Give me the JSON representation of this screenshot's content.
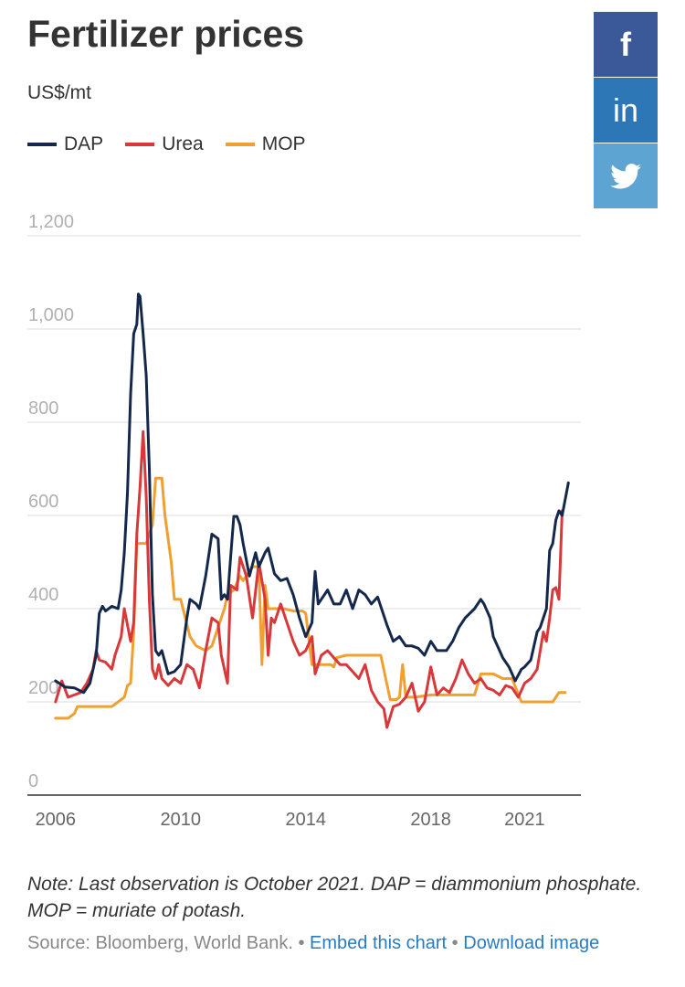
{
  "header": {
    "title": "Fertilizer prices",
    "unit": "US$/mt"
  },
  "share": {
    "facebook_label": "f",
    "linkedin_label": "in",
    "colors": {
      "facebook": "#3b5998",
      "linkedin": "#2e77b7",
      "twitter": "#5ea4d2"
    }
  },
  "footer": {
    "note": "Note: Last observation is October 2021. DAP = diammonium phosphate. MOP = muriate of potash.",
    "source": "Source: Bloomberg, World Bank.",
    "separator": "•",
    "embed_label": "Embed this chart",
    "download_label": "Download image"
  },
  "chart_data": {
    "type": "line",
    "xlabel": "",
    "ylabel": "",
    "xlim": [
      2005.1,
      2022.8
    ],
    "ylim": [
      0,
      1200
    ],
    "yticks": [
      0,
      200,
      400,
      600,
      800,
      1000,
      1200
    ],
    "ytick_labels": [
      "0",
      "200",
      "400",
      "600",
      "800",
      "1,000",
      "1,200"
    ],
    "xticks": [
      2006,
      2010,
      2014,
      2018,
      2021
    ],
    "xtick_labels": [
      "2006",
      "2010",
      "2014",
      "2018",
      "2021"
    ],
    "grid": true,
    "legend_position": "top-left",
    "series": [
      {
        "name": "DAP",
        "color": "#14284b",
        "points": [
          [
            2006.0,
            245
          ],
          [
            2006.3,
            232
          ],
          [
            2006.6,
            230
          ],
          [
            2006.9,
            220
          ],
          [
            2007.1,
            240
          ],
          [
            2007.3,
            300
          ],
          [
            2007.4,
            390
          ],
          [
            2007.5,
            405
          ],
          [
            2007.6,
            395
          ],
          [
            2007.8,
            405
          ],
          [
            2008.0,
            400
          ],
          [
            2008.1,
            440
          ],
          [
            2008.2,
            520
          ],
          [
            2008.3,
            650
          ],
          [
            2008.4,
            860
          ],
          [
            2008.5,
            990
          ],
          [
            2008.6,
            1010
          ],
          [
            2008.65,
            1075
          ],
          [
            2008.7,
            1070
          ],
          [
            2008.8,
            990
          ],
          [
            2008.9,
            900
          ],
          [
            2009.0,
            700
          ],
          [
            2009.1,
            430
          ],
          [
            2009.2,
            310
          ],
          [
            2009.3,
            300
          ],
          [
            2009.4,
            310
          ],
          [
            2009.6,
            260
          ],
          [
            2009.8,
            265
          ],
          [
            2010.0,
            280
          ],
          [
            2010.2,
            380
          ],
          [
            2010.3,
            420
          ],
          [
            2010.5,
            410
          ],
          [
            2010.6,
            400
          ],
          [
            2010.8,
            470
          ],
          [
            2011.0,
            560
          ],
          [
            2011.2,
            550
          ],
          [
            2011.3,
            420
          ],
          [
            2011.4,
            430
          ],
          [
            2011.5,
            420
          ],
          [
            2011.6,
            510
          ],
          [
            2011.7,
            598
          ],
          [
            2011.8,
            598
          ],
          [
            2011.9,
            580
          ],
          [
            2012.0,
            540
          ],
          [
            2012.2,
            470
          ],
          [
            2012.4,
            520
          ],
          [
            2012.5,
            490
          ],
          [
            2012.7,
            520
          ],
          [
            2012.8,
            530
          ],
          [
            2013.0,
            475
          ],
          [
            2013.2,
            460
          ],
          [
            2013.4,
            465
          ],
          [
            2013.6,
            430
          ],
          [
            2013.8,
            380
          ],
          [
            2014.0,
            340
          ],
          [
            2014.2,
            370
          ],
          [
            2014.3,
            480
          ],
          [
            2014.4,
            410
          ],
          [
            2014.5,
            420
          ],
          [
            2014.7,
            440
          ],
          [
            2014.9,
            410
          ],
          [
            2015.1,
            410
          ],
          [
            2015.3,
            440
          ],
          [
            2015.5,
            400
          ],
          [
            2015.7,
            440
          ],
          [
            2015.9,
            430
          ],
          [
            2016.1,
            410
          ],
          [
            2016.3,
            425
          ],
          [
            2016.6,
            365
          ],
          [
            2016.8,
            330
          ],
          [
            2017.0,
            340
          ],
          [
            2017.2,
            320
          ],
          [
            2017.4,
            320
          ],
          [
            2017.6,
            315
          ],
          [
            2017.8,
            300
          ],
          [
            2018.0,
            330
          ],
          [
            2018.2,
            310
          ],
          [
            2018.5,
            310
          ],
          [
            2018.7,
            330
          ],
          [
            2018.9,
            360
          ],
          [
            2019.1,
            380
          ],
          [
            2019.4,
            400
          ],
          [
            2019.6,
            420
          ],
          [
            2019.7,
            410
          ],
          [
            2019.9,
            380
          ],
          [
            2020.0,
            340
          ],
          [
            2020.2,
            310
          ],
          [
            2020.3,
            295
          ],
          [
            2020.5,
            275
          ],
          [
            2020.7,
            245
          ],
          [
            2020.9,
            270
          ],
          [
            2021.0,
            275
          ],
          [
            2021.2,
            290
          ],
          [
            2021.4,
            350
          ],
          [
            2021.5,
            360
          ],
          [
            2021.7,
            400
          ],
          [
            2021.8,
            525
          ],
          [
            2021.9,
            540
          ],
          [
            2022.0,
            590
          ],
          [
            2022.1,
            610
          ],
          [
            2022.2,
            600
          ],
          [
            2022.4,
            670
          ]
        ]
      },
      {
        "name": "Urea",
        "color": "#d9383a",
        "points": [
          [
            2006.0,
            200
          ],
          [
            2006.2,
            245
          ],
          [
            2006.4,
            210
          ],
          [
            2006.6,
            215
          ],
          [
            2006.8,
            220
          ],
          [
            2007.0,
            240
          ],
          [
            2007.2,
            270
          ],
          [
            2007.3,
            310
          ],
          [
            2007.4,
            290
          ],
          [
            2007.6,
            285
          ],
          [
            2007.8,
            270
          ],
          [
            2007.9,
            300
          ],
          [
            2008.1,
            340
          ],
          [
            2008.2,
            400
          ],
          [
            2008.4,
            330
          ],
          [
            2008.5,
            370
          ],
          [
            2008.6,
            560
          ],
          [
            2008.7,
            660
          ],
          [
            2008.8,
            780
          ],
          [
            2008.9,
            640
          ],
          [
            2009.0,
            420
          ],
          [
            2009.1,
            270
          ],
          [
            2009.2,
            250
          ],
          [
            2009.3,
            280
          ],
          [
            2009.4,
            250
          ],
          [
            2009.6,
            235
          ],
          [
            2009.8,
            250
          ],
          [
            2010.0,
            240
          ],
          [
            2010.2,
            280
          ],
          [
            2010.4,
            270
          ],
          [
            2010.6,
            230
          ],
          [
            2010.8,
            310
          ],
          [
            2011.0,
            380
          ],
          [
            2011.2,
            370
          ],
          [
            2011.3,
            300
          ],
          [
            2011.5,
            240
          ],
          [
            2011.6,
            450
          ],
          [
            2011.8,
            440
          ],
          [
            2011.9,
            510
          ],
          [
            2012.1,
            470
          ],
          [
            2012.3,
            380
          ],
          [
            2012.5,
            500
          ],
          [
            2012.7,
            420
          ],
          [
            2012.8,
            300
          ],
          [
            2012.9,
            380
          ],
          [
            2013.0,
            370
          ],
          [
            2013.2,
            410
          ],
          [
            2013.4,
            370
          ],
          [
            2013.6,
            330
          ],
          [
            2013.8,
            300
          ],
          [
            2014.0,
            310
          ],
          [
            2014.2,
            340
          ],
          [
            2014.3,
            260
          ],
          [
            2014.5,
            300
          ],
          [
            2014.7,
            310
          ],
          [
            2014.9,
            295
          ],
          [
            2015.1,
            280
          ],
          [
            2015.3,
            280
          ],
          [
            2015.5,
            265
          ],
          [
            2015.7,
            250
          ],
          [
            2015.9,
            280
          ],
          [
            2016.1,
            225
          ],
          [
            2016.3,
            200
          ],
          [
            2016.5,
            185
          ],
          [
            2016.6,
            145
          ],
          [
            2016.8,
            190
          ],
          [
            2017.0,
            195
          ],
          [
            2017.2,
            210
          ],
          [
            2017.4,
            240
          ],
          [
            2017.6,
            180
          ],
          [
            2017.8,
            200
          ],
          [
            2018.0,
            275
          ],
          [
            2018.2,
            215
          ],
          [
            2018.4,
            230
          ],
          [
            2018.6,
            220
          ],
          [
            2018.8,
            250
          ],
          [
            2019.0,
            290
          ],
          [
            2019.2,
            260
          ],
          [
            2019.4,
            240
          ],
          [
            2019.6,
            250
          ],
          [
            2019.8,
            230
          ],
          [
            2020.0,
            225
          ],
          [
            2020.2,
            215
          ],
          [
            2020.4,
            235
          ],
          [
            2020.6,
            230
          ],
          [
            2020.8,
            210
          ],
          [
            2021.0,
            240
          ],
          [
            2021.2,
            250
          ],
          [
            2021.4,
            270
          ],
          [
            2021.6,
            350
          ],
          [
            2021.7,
            330
          ],
          [
            2021.8,
            380
          ],
          [
            2021.9,
            440
          ],
          [
            2022.0,
            445
          ],
          [
            2022.1,
            420
          ],
          [
            2022.2,
            610
          ]
        ]
      },
      {
        "name": "MOP",
        "color": "#f0a030",
        "points": [
          [
            2006.0,
            165
          ],
          [
            2006.4,
            165
          ],
          [
            2006.6,
            175
          ],
          [
            2006.7,
            190
          ],
          [
            2007.3,
            190
          ],
          [
            2007.6,
            190
          ],
          [
            2007.8,
            190
          ],
          [
            2008.0,
            200
          ],
          [
            2008.2,
            210
          ],
          [
            2008.3,
            235
          ],
          [
            2008.4,
            240
          ],
          [
            2008.5,
            350
          ],
          [
            2008.6,
            540
          ],
          [
            2008.9,
            540
          ],
          [
            2009.0,
            560
          ],
          [
            2009.1,
            580
          ],
          [
            2009.2,
            680
          ],
          [
            2009.4,
            680
          ],
          [
            2009.5,
            600
          ],
          [
            2009.7,
            500
          ],
          [
            2009.8,
            420
          ],
          [
            2010.0,
            420
          ],
          [
            2010.3,
            340
          ],
          [
            2010.5,
            320
          ],
          [
            2010.8,
            310
          ],
          [
            2011.0,
            320
          ],
          [
            2011.2,
            360
          ],
          [
            2011.4,
            400
          ],
          [
            2011.5,
            430
          ],
          [
            2011.7,
            440
          ],
          [
            2011.9,
            470
          ],
          [
            2012.0,
            460
          ],
          [
            2012.3,
            490
          ],
          [
            2012.5,
            490
          ],
          [
            2012.6,
            280
          ],
          [
            2012.7,
            450
          ],
          [
            2012.8,
            400
          ],
          [
            2013.3,
            400
          ],
          [
            2013.6,
            395
          ],
          [
            2013.9,
            395
          ],
          [
            2014.0,
            390
          ],
          [
            2014.2,
            280
          ],
          [
            2014.8,
            280
          ],
          [
            2014.9,
            275
          ],
          [
            2015.0,
            295
          ],
          [
            2015.3,
            300
          ],
          [
            2015.6,
            300
          ],
          [
            2016.1,
            300
          ],
          [
            2016.4,
            300
          ],
          [
            2016.7,
            205
          ],
          [
            2016.9,
            205
          ],
          [
            2017.0,
            210
          ],
          [
            2017.1,
            280
          ],
          [
            2017.2,
            210
          ],
          [
            2017.5,
            210
          ],
          [
            2018.0,
            215
          ],
          [
            2018.5,
            215
          ],
          [
            2019.0,
            215
          ],
          [
            2019.4,
            215
          ],
          [
            2019.6,
            260
          ],
          [
            2020.0,
            260
          ],
          [
            2020.3,
            250
          ],
          [
            2020.6,
            250
          ],
          [
            2020.9,
            200
          ],
          [
            2021.3,
            200
          ],
          [
            2021.6,
            200
          ],
          [
            2021.9,
            200
          ],
          [
            2022.1,
            220
          ],
          [
            2022.3,
            220
          ]
        ]
      }
    ]
  }
}
